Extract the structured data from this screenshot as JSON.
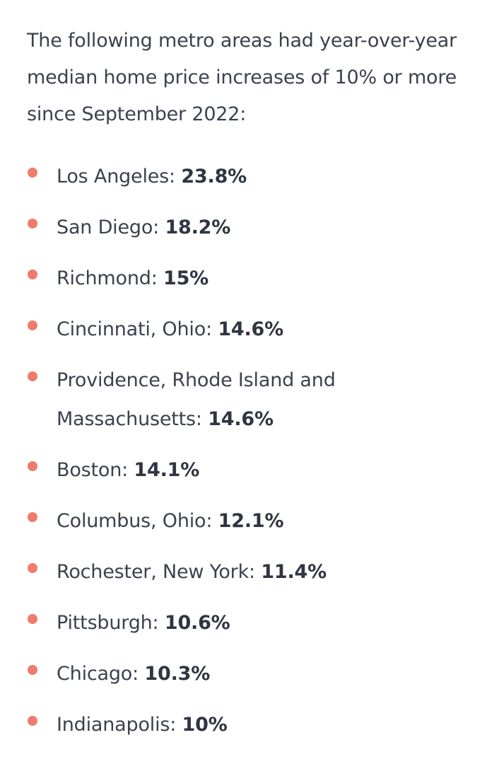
{
  "intro": "The following metro areas had year-over-year median home price increases of 10% or more since September 2022:",
  "items": [
    {
      "label": "Los Angeles:",
      "value": "23.8%"
    },
    {
      "label": "San Diego:",
      "value": "18.2%"
    },
    {
      "label": "Richmond:",
      "value": "15%"
    },
    {
      "label": "Cincinnati, Ohio:",
      "value": "14.6%"
    },
    {
      "label": "Providence, Rhode Island and Massachusetts:",
      "value": "14.6%"
    },
    {
      "label": "Boston:",
      "value": "14.1%"
    },
    {
      "label": "Columbus, Ohio:",
      "value": "12.1%"
    },
    {
      "label": "Rochester, New York:",
      "value": "11.4%"
    },
    {
      "label": "Pittsburgh:",
      "value": "10.6%"
    },
    {
      "label": "Chicago:",
      "value": "10.3%"
    },
    {
      "label": "Indianapolis:",
      "value": "10%"
    }
  ]
}
